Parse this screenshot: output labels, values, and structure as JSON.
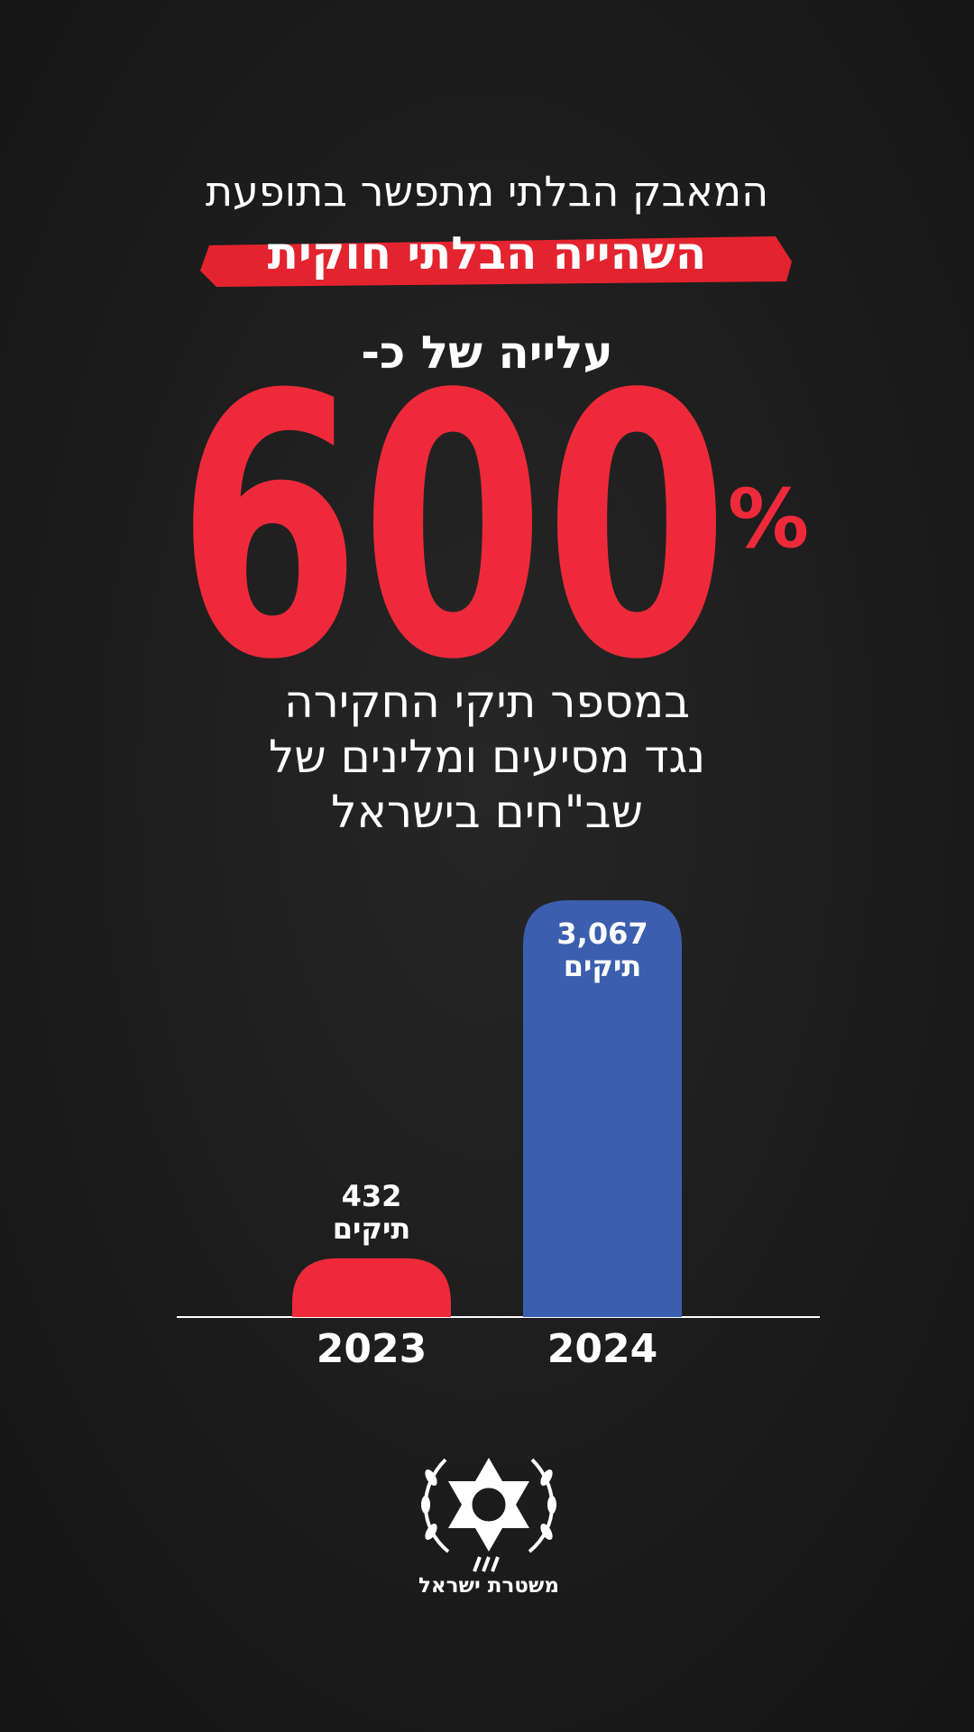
{
  "chart_data": {
    "type": "bar",
    "title": "המאבק הבלתי מתפשר בתופעת",
    "subtitle": "השהייה הבלתי חוקית",
    "headline_prefix": "עלייה של כ-",
    "headline_value": 600,
    "headline_unit": "%",
    "description": [
      "במספר תיקי החקירה",
      "נגד מסיעים ומלינים של",
      "שב\"חים בישראל"
    ],
    "categories": [
      "2023",
      "2024"
    ],
    "values": [
      432,
      3067
    ],
    "value_labels": [
      "432",
      "3,067"
    ],
    "value_unit": "תיקים",
    "colors": [
      "#ee2a3a",
      "#3b5fae"
    ],
    "footer": "משטרת ישראל"
  }
}
